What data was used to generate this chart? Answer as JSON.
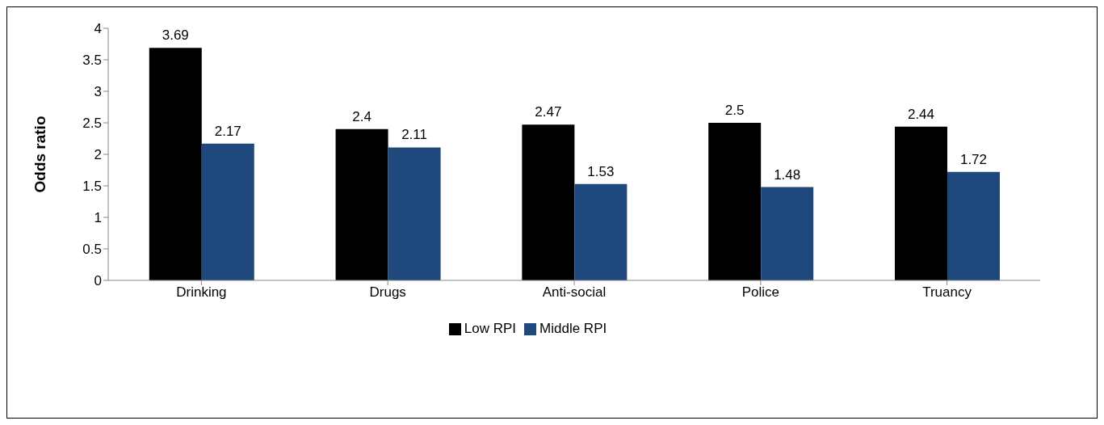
{
  "chart_data": {
    "type": "bar",
    "ylabel": "Odds ratio",
    "categories": [
      "Drinking",
      "Drugs",
      "Anti-social",
      "Police",
      "Truancy"
    ],
    "series": [
      {
        "name": "Low RPI",
        "color": "#000000",
        "values": [
          3.69,
          2.4,
          2.47,
          2.5,
          2.44
        ]
      },
      {
        "name": "Middle RPI",
        "color": "#1f497d",
        "values": [
          2.17,
          2.11,
          1.53,
          1.48,
          1.72
        ]
      }
    ],
    "ylim": [
      0,
      4
    ],
    "yticks": [
      0,
      0.5,
      1,
      1.5,
      2,
      2.5,
      3,
      3.5,
      4
    ],
    "data_labels": true,
    "legend": "bottom"
  }
}
